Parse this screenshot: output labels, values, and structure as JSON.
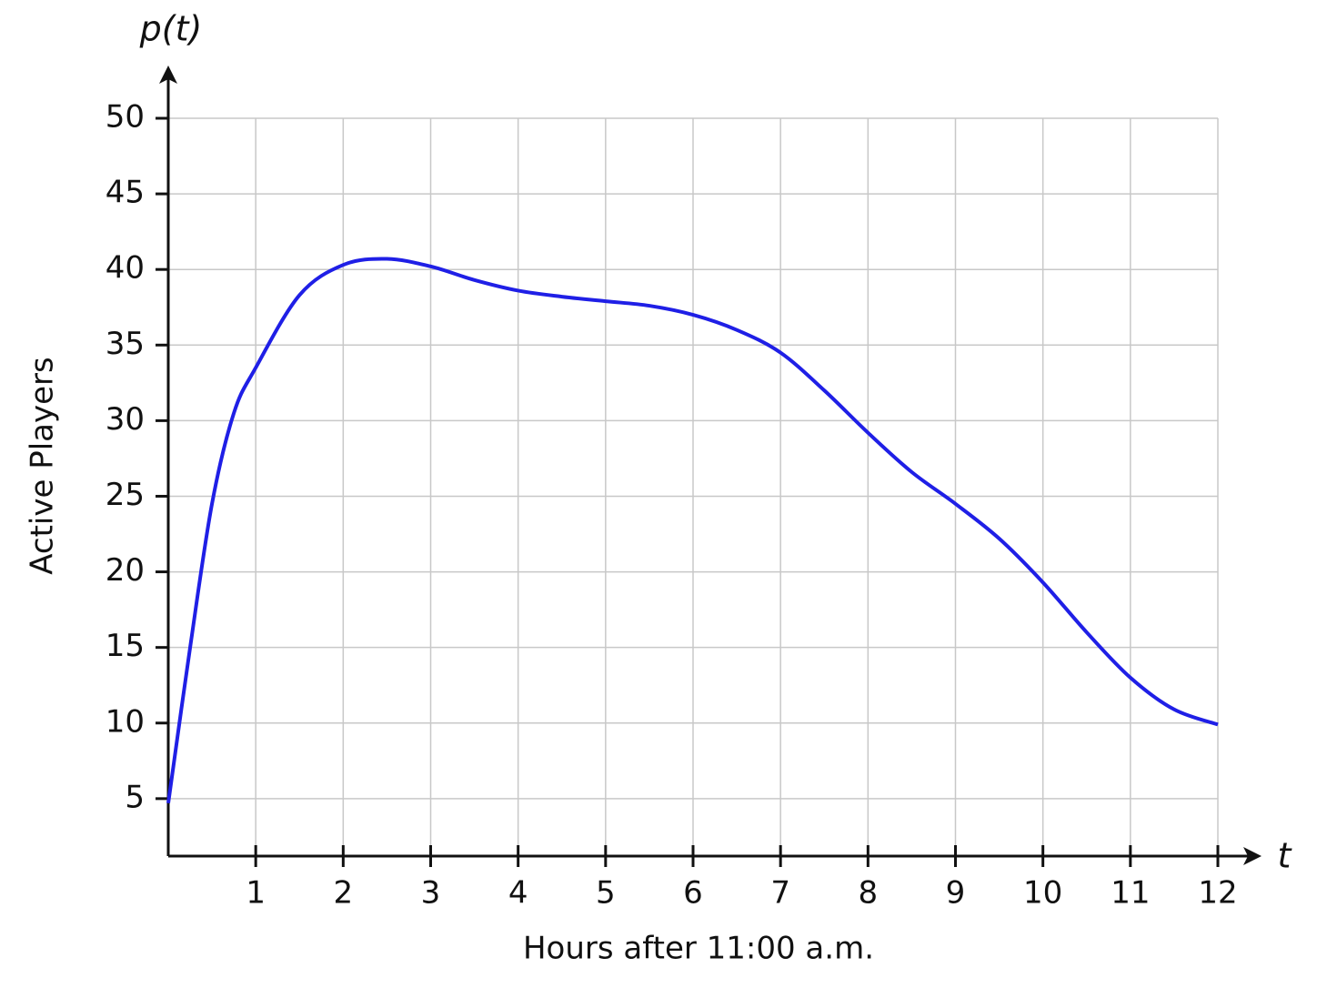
{
  "chart_data": {
    "type": "line",
    "y_axis_symbol": "p(t)",
    "x_axis_symbol": "t",
    "x_label": "Hours after 11:00 a.m.",
    "y_label": "Active Players",
    "x": [
      0,
      0.25,
      0.5,
      0.75,
      1,
      1.5,
      2,
      2.5,
      3,
      3.5,
      4,
      4.5,
      5,
      5.5,
      6,
      6.5,
      7,
      7.5,
      8,
      8.5,
      9,
      9.5,
      10,
      10.5,
      11,
      11.5,
      12
    ],
    "series": [
      {
        "name": "p(t)",
        "color": "#1f1fe6",
        "values": [
          4.7,
          15,
          24.5,
          30.5,
          33.5,
          38.3,
          40.3,
          40.7,
          40.2,
          39.3,
          38.6,
          38.2,
          37.9,
          37.6,
          37,
          36,
          34.5,
          32,
          29.2,
          26.6,
          24.5,
          22.2,
          19.3,
          16,
          13,
          10.9,
          9.9
        ]
      }
    ],
    "xlim": [
      0,
      12
    ],
    "ylim": [
      1.2,
      50
    ],
    "xticks": [
      1,
      2,
      3,
      4,
      5,
      6,
      7,
      8,
      9,
      10,
      11,
      12
    ],
    "yticks": [
      5,
      10,
      15,
      20,
      25,
      30,
      35,
      40,
      45,
      50
    ],
    "grid": true
  }
}
